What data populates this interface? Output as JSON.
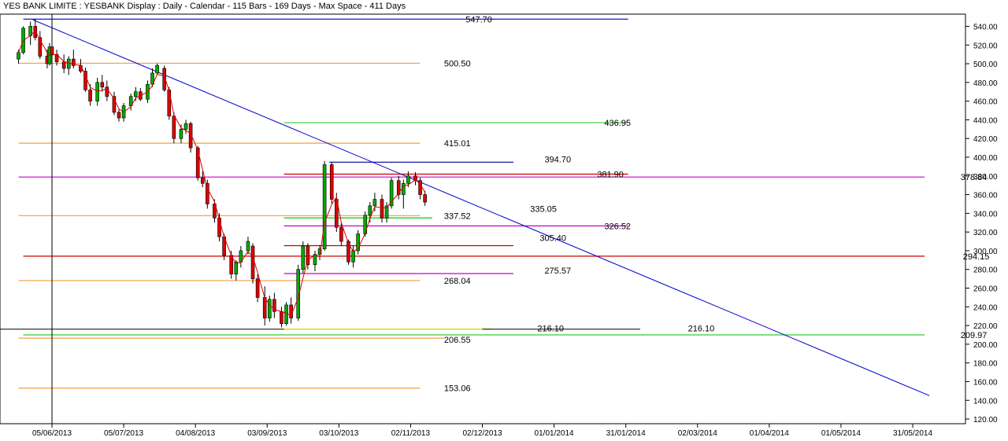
{
  "chart_data": {
    "type": "candlestick",
    "title": "YES BANK LIMITE : YESBANK Display :  Daily  - Calendar - 115 Bars - 169 Days  - Max Space - 411 Days",
    "ylim": [
      115,
      553
    ],
    "y_ticks": [
      120,
      140,
      160,
      180,
      200,
      220,
      240,
      260,
      280,
      300,
      320,
      340,
      360,
      380,
      400,
      420,
      440,
      460,
      480,
      500,
      520,
      540
    ],
    "x_ticks": [
      "05/06/2013",
      "05/07/2013",
      "04/08/2013",
      "03/09/2013",
      "03/10/2013",
      "02/11/2013",
      "02/12/2013",
      "01/01/2014",
      "31/01/2014",
      "02/03/2014",
      "01/04/2014",
      "01/05/2014",
      "31/05/2014"
    ],
    "levels": [
      {
        "value": 547.7,
        "label": "547.70",
        "color": "#0000cc"
      },
      {
        "value": 500.5,
        "label": "500.50",
        "color": "#f0a040"
      },
      {
        "value": 436.95,
        "label": "436.95",
        "color": "#33cc33"
      },
      {
        "value": 415.01,
        "label": "415.01",
        "color": "#f0a040"
      },
      {
        "value": 394.7,
        "label": "394.70",
        "color": "#000099"
      },
      {
        "value": 381.9,
        "label": "381.90",
        "color": "#cc0000"
      },
      {
        "value": 378.84,
        "label": "378.84",
        "color": "#cc00cc"
      },
      {
        "value": 337.52,
        "label": "337.52",
        "color": "#f0a040"
      },
      {
        "value": 335.05,
        "label": "335.05",
        "color": "#33cc33"
      },
      {
        "value": 326.52,
        "label": "326.52",
        "color": "#cc00cc"
      },
      {
        "value": 305.4,
        "label": "305.40",
        "color": "#cc0000"
      },
      {
        "value": 294.15,
        "label": "294.15",
        "color": "#cc0000"
      },
      {
        "value": 275.57,
        "label": "275.57",
        "color": "#cc00cc"
      },
      {
        "value": 268.04,
        "label": "268.04",
        "color": "#f0a040"
      },
      {
        "value": 216.1,
        "label": "216.10",
        "color": "#dddd00"
      },
      {
        "value": 216.1,
        "label": "216.10",
        "color": "#000000"
      },
      {
        "value": 209.97,
        "label": "209.97",
        "color": "#33cc33"
      },
      {
        "value": 206.55,
        "label": "206.55",
        "color": "#f0a040"
      },
      {
        "value": 153.06,
        "label": "153.06",
        "color": "#f0a040"
      }
    ],
    "trendline": {
      "from": [
        "28/05/2013",
        547
      ],
      "to": [
        "07/06/2014",
        145
      ],
      "color": "#0000cc"
    },
    "marker_date": "05/06/2013",
    "candles": [
      {
        "date": "22/05/2013",
        "o": 505,
        "h": 515,
        "l": 500,
        "c": 512
      },
      {
        "date": "24/05/2013",
        "o": 512,
        "h": 540,
        "l": 510,
        "c": 538
      },
      {
        "date": "27/05/2013",
        "o": 530,
        "h": 545,
        "l": 520,
        "c": 540
      },
      {
        "date": "29/05/2013",
        "o": 540,
        "h": 548,
        "l": 525,
        "c": 528
      },
      {
        "date": "31/05/2013",
        "o": 528,
        "h": 535,
        "l": 505,
        "c": 508
      },
      {
        "date": "03/06/2013",
        "o": 508,
        "h": 515,
        "l": 495,
        "c": 500
      },
      {
        "date": "04/06/2013",
        "o": 500,
        "h": 522,
        "l": 498,
        "c": 518
      },
      {
        "date": "05/06/2013",
        "o": 518,
        "h": 528,
        "l": 505,
        "c": 510
      },
      {
        "date": "07/06/2013",
        "o": 510,
        "h": 515,
        "l": 498,
        "c": 502
      },
      {
        "date": "10/06/2013",
        "o": 502,
        "h": 510,
        "l": 490,
        "c": 495
      },
      {
        "date": "12/06/2013",
        "o": 495,
        "h": 508,
        "l": 488,
        "c": 505
      },
      {
        "date": "14/06/2013",
        "o": 505,
        "h": 515,
        "l": 495,
        "c": 498
      },
      {
        "date": "17/06/2013",
        "o": 498,
        "h": 505,
        "l": 490,
        "c": 492
      },
      {
        "date": "19/06/2013",
        "o": 492,
        "h": 496,
        "l": 470,
        "c": 472
      },
      {
        "date": "21/06/2013",
        "o": 472,
        "h": 478,
        "l": 455,
        "c": 460
      },
      {
        "date": "24/06/2013",
        "o": 460,
        "h": 485,
        "l": 455,
        "c": 480
      },
      {
        "date": "26/06/2013",
        "o": 480,
        "h": 488,
        "l": 470,
        "c": 475
      },
      {
        "date": "28/06/2013",
        "o": 475,
        "h": 482,
        "l": 460,
        "c": 465
      },
      {
        "date": "01/07/2013",
        "o": 465,
        "h": 470,
        "l": 445,
        "c": 448
      },
      {
        "date": "03/07/2013",
        "o": 448,
        "h": 452,
        "l": 438,
        "c": 442
      },
      {
        "date": "05/07/2013",
        "o": 442,
        "h": 458,
        "l": 438,
        "c": 455
      },
      {
        "date": "08/07/2013",
        "o": 455,
        "h": 468,
        "l": 450,
        "c": 465
      },
      {
        "date": "10/07/2013",
        "o": 465,
        "h": 475,
        "l": 460,
        "c": 470
      },
      {
        "date": "12/07/2013",
        "o": 470,
        "h": 474,
        "l": 460,
        "c": 462
      },
      {
        "date": "15/07/2013",
        "o": 462,
        "h": 482,
        "l": 458,
        "c": 478
      },
      {
        "date": "17/07/2013",
        "o": 478,
        "h": 495,
        "l": 475,
        "c": 490
      },
      {
        "date": "19/07/2013",
        "o": 490,
        "h": 500,
        "l": 488,
        "c": 498
      },
      {
        "date": "22/07/2013",
        "o": 495,
        "h": 498,
        "l": 470,
        "c": 472
      },
      {
        "date": "24/07/2013",
        "o": 472,
        "h": 475,
        "l": 440,
        "c": 444
      },
      {
        "date": "26/07/2013",
        "o": 444,
        "h": 448,
        "l": 415,
        "c": 420
      },
      {
        "date": "29/07/2013",
        "o": 420,
        "h": 435,
        "l": 415,
        "c": 430
      },
      {
        "date": "31/07/2013",
        "o": 430,
        "h": 440,
        "l": 425,
        "c": 436
      },
      {
        "date": "02/08/2013",
        "o": 436,
        "h": 438,
        "l": 405,
        "c": 410
      },
      {
        "date": "05/08/2013",
        "o": 410,
        "h": 412,
        "l": 375,
        "c": 378
      },
      {
        "date": "07/08/2013",
        "o": 378,
        "h": 385,
        "l": 368,
        "c": 372
      },
      {
        "date": "09/08/2013",
        "o": 372,
        "h": 376,
        "l": 345,
        "c": 350
      },
      {
        "date": "12/08/2013",
        "o": 350,
        "h": 355,
        "l": 330,
        "c": 335
      },
      {
        "date": "14/08/2013",
        "o": 335,
        "h": 340,
        "l": 310,
        "c": 315
      },
      {
        "date": "16/08/2013",
        "o": 315,
        "h": 318,
        "l": 290,
        "c": 295
      },
      {
        "date": "19/08/2013",
        "o": 295,
        "h": 300,
        "l": 270,
        "c": 275
      },
      {
        "date": "21/08/2013",
        "o": 275,
        "h": 290,
        "l": 268,
        "c": 288
      },
      {
        "date": "23/08/2013",
        "o": 288,
        "h": 305,
        "l": 282,
        "c": 300
      },
      {
        "date": "26/08/2013",
        "o": 300,
        "h": 315,
        "l": 296,
        "c": 310
      },
      {
        "date": "28/08/2013",
        "o": 305,
        "h": 308,
        "l": 265,
        "c": 270
      },
      {
        "date": "30/08/2013",
        "o": 270,
        "h": 275,
        "l": 245,
        "c": 250
      },
      {
        "date": "02/09/2013",
        "o": 250,
        "h": 262,
        "l": 220,
        "c": 228
      },
      {
        "date": "04/09/2013",
        "o": 228,
        "h": 252,
        "l": 224,
        "c": 248
      },
      {
        "date": "06/09/2013",
        "o": 248,
        "h": 255,
        "l": 228,
        "c": 235
      },
      {
        "date": "09/09/2013",
        "o": 235,
        "h": 240,
        "l": 218,
        "c": 222
      },
      {
        "date": "11/09/2013",
        "o": 222,
        "h": 245,
        "l": 220,
        "c": 242
      },
      {
        "date": "13/09/2013",
        "o": 242,
        "h": 250,
        "l": 222,
        "c": 228
      },
      {
        "date": "16/09/2013",
        "o": 228,
        "h": 285,
        "l": 225,
        "c": 280
      },
      {
        "date": "18/09/2013",
        "o": 280,
        "h": 310,
        "l": 276,
        "c": 305
      },
      {
        "date": "20/09/2013",
        "o": 305,
        "h": 308,
        "l": 280,
        "c": 285
      },
      {
        "date": "23/09/2013",
        "o": 285,
        "h": 300,
        "l": 278,
        "c": 296
      },
      {
        "date": "25/09/2013",
        "o": 296,
        "h": 306,
        "l": 290,
        "c": 302
      },
      {
        "date": "27/09/2013",
        "o": 302,
        "h": 396,
        "l": 300,
        "c": 392
      },
      {
        "date": "30/09/2013",
        "o": 392,
        "h": 395,
        "l": 350,
        "c": 355
      },
      {
        "date": "02/10/2013",
        "o": 355,
        "h": 362,
        "l": 320,
        "c": 325
      },
      {
        "date": "04/10/2013",
        "o": 325,
        "h": 330,
        "l": 305,
        "c": 310
      },
      {
        "date": "07/10/2013",
        "o": 310,
        "h": 312,
        "l": 285,
        "c": 288
      },
      {
        "date": "09/10/2013",
        "o": 288,
        "h": 305,
        "l": 282,
        "c": 300
      },
      {
        "date": "11/10/2013",
        "o": 300,
        "h": 322,
        "l": 296,
        "c": 318
      },
      {
        "date": "14/10/2013",
        "o": 318,
        "h": 342,
        "l": 315,
        "c": 338
      },
      {
        "date": "16/10/2013",
        "o": 338,
        "h": 352,
        "l": 330,
        "c": 348
      },
      {
        "date": "18/10/2013",
        "o": 348,
        "h": 362,
        "l": 342,
        "c": 355
      },
      {
        "date": "21/10/2013",
        "o": 355,
        "h": 360,
        "l": 330,
        "c": 335
      },
      {
        "date": "23/10/2013",
        "o": 335,
        "h": 352,
        "l": 330,
        "c": 348
      },
      {
        "date": "25/10/2013",
        "o": 348,
        "h": 378,
        "l": 345,
        "c": 375
      },
      {
        "date": "28/10/2013",
        "o": 375,
        "h": 380,
        "l": 355,
        "c": 360
      },
      {
        "date": "30/10/2013",
        "o": 360,
        "h": 376,
        "l": 345,
        "c": 372
      },
      {
        "date": "01/11/2013",
        "o": 372,
        "h": 385,
        "l": 368,
        "c": 380
      },
      {
        "date": "04/11/2013",
        "o": 380,
        "h": 384,
        "l": 370,
        "c": 375
      },
      {
        "date": "06/11/2013",
        "o": 375,
        "h": 378,
        "l": 355,
        "c": 360
      },
      {
        "date": "08/11/2013",
        "o": 360,
        "h": 364,
        "l": 348,
        "c": 352
      }
    ]
  }
}
